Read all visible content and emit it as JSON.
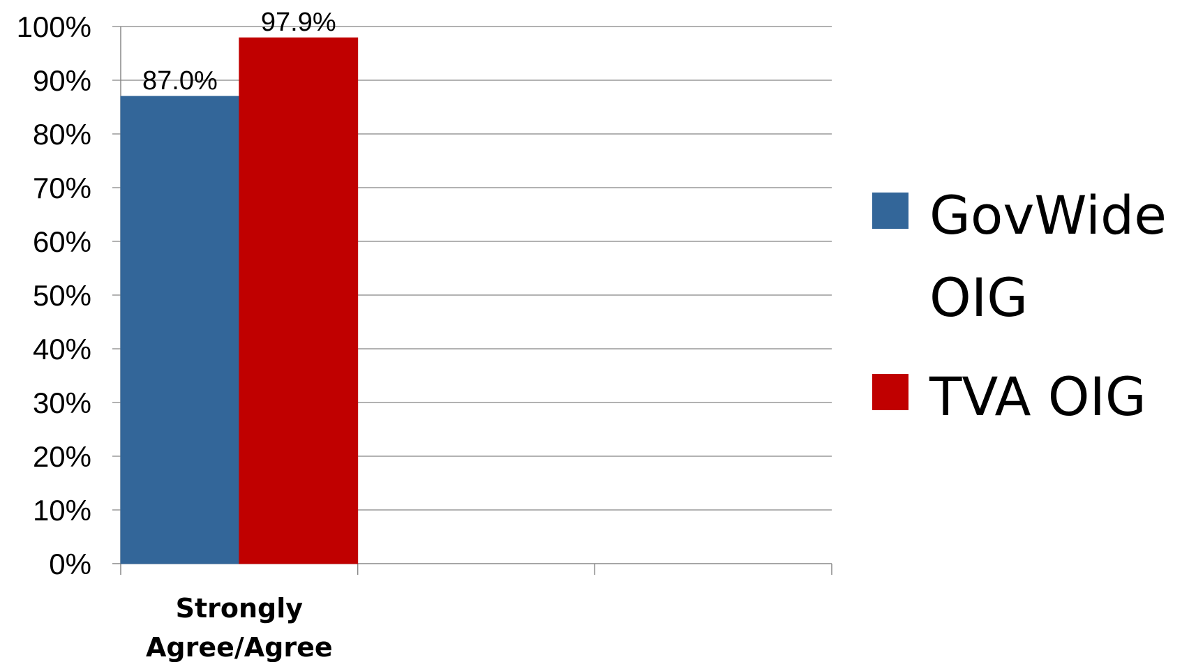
{
  "chart_data": {
    "type": "bar",
    "categories": [
      "Strongly\nAgree/Agree",
      "",
      ""
    ],
    "category_lines": [
      [
        "Strongly",
        "Agree/Agree"
      ],
      [],
      []
    ],
    "series": [
      {
        "name": "GovWide OIG",
        "values": [
          87.0,
          null,
          null
        ],
        "color": "#336699",
        "labels": [
          "87.0%",
          "",
          ""
        ]
      },
      {
        "name": "TVA OIG",
        "values": [
          97.9,
          null,
          null
        ],
        "color": "#C00000",
        "labels": [
          "97.9%",
          "",
          ""
        ]
      }
    ],
    "ylim": [
      0,
      100
    ],
    "yticks": [
      "0%",
      "10%",
      "20%",
      "30%",
      "40%",
      "50%",
      "60%",
      "70%",
      "80%",
      "90%",
      "100%"
    ],
    "grid": true,
    "legend_position": "right",
    "title": "",
    "xlabel": "",
    "ylabel": ""
  },
  "legend": {
    "items": [
      {
        "label": "GovWide OIG",
        "color": "#336699"
      },
      {
        "label": "TVA OIG",
        "color": "#C00000"
      }
    ]
  }
}
